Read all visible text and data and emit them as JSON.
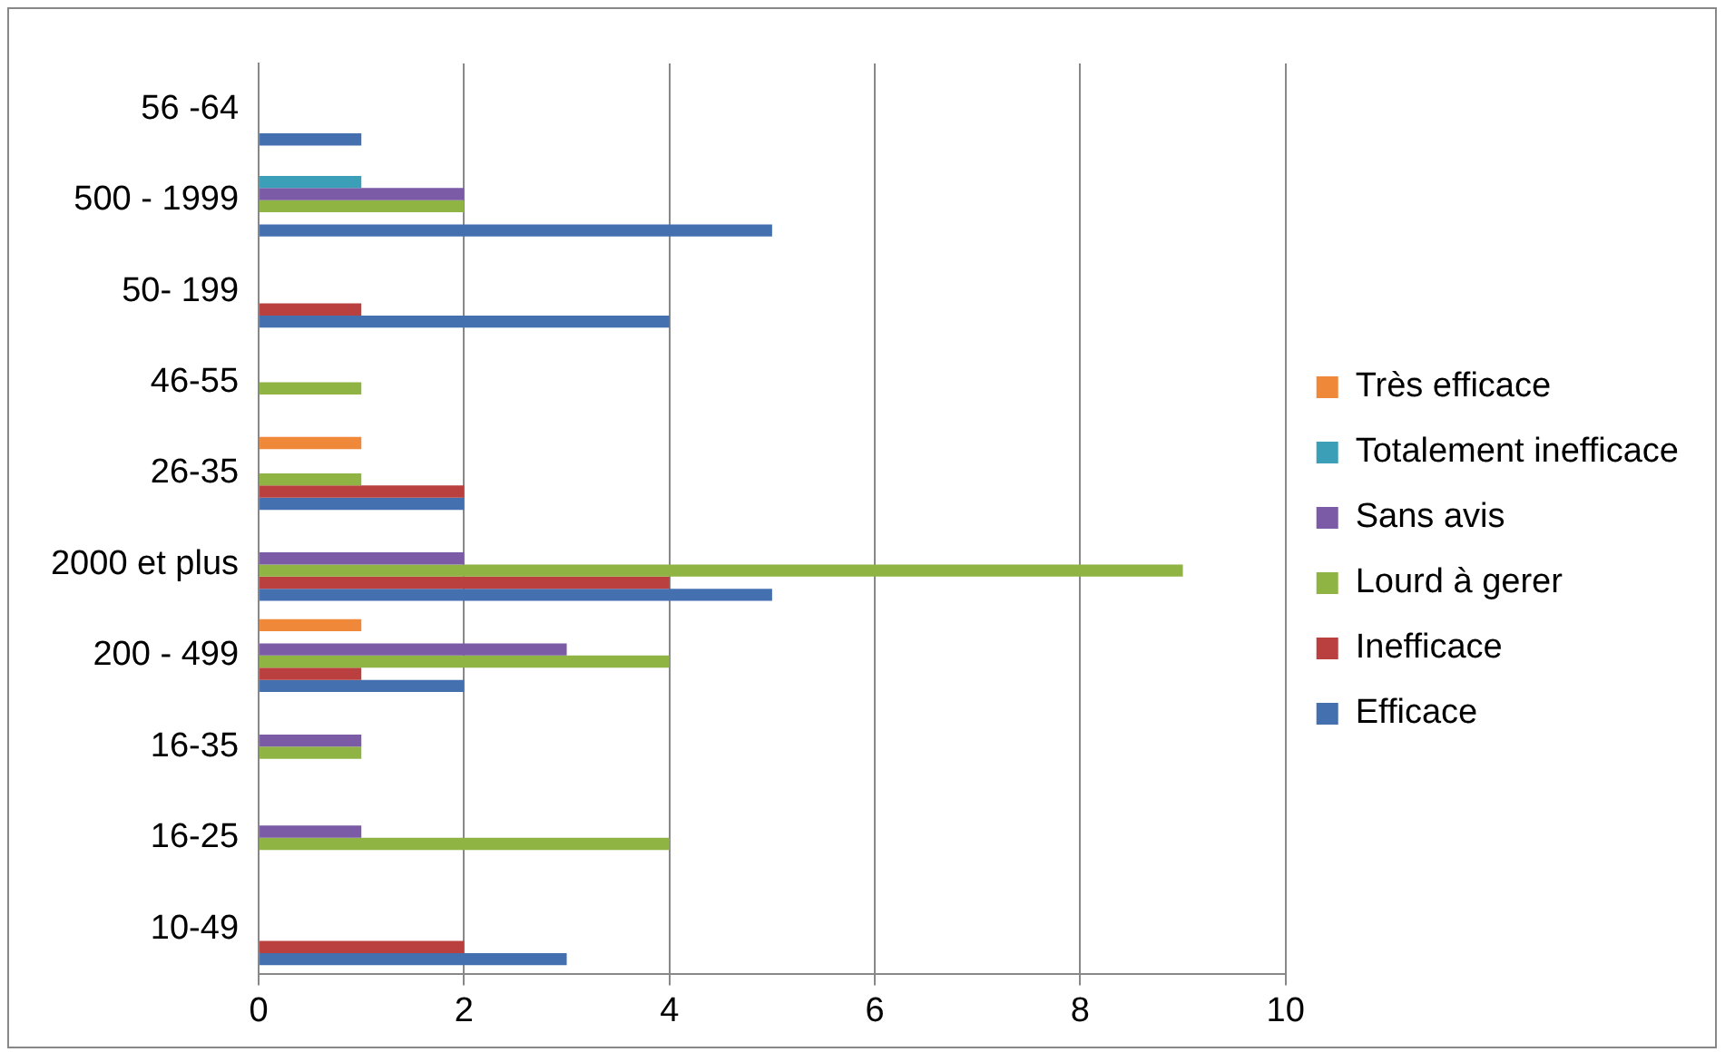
{
  "chart_data": {
    "type": "bar",
    "orientation": "horizontal",
    "categories": [
      "56 -64",
      "500 - 1999",
      "50- 199",
      "46-55",
      "26-35",
      "2000 et plus",
      "200 - 499",
      "16-35",
      "16-25",
      "10-49"
    ],
    "series": [
      {
        "name": "Très efficace",
        "color": "#f0883a",
        "values": [
          null,
          null,
          null,
          null,
          1,
          null,
          1,
          null,
          null,
          null
        ]
      },
      {
        "name": "Totalement inefficace",
        "color": "#3c9fb8",
        "values": [
          null,
          1,
          null,
          null,
          null,
          null,
          null,
          null,
          null,
          null
        ]
      },
      {
        "name": "Sans avis",
        "color": "#7b5ba6",
        "values": [
          null,
          2,
          null,
          null,
          null,
          2,
          3,
          1,
          1,
          null
        ]
      },
      {
        "name": "Lourd à gerer",
        "color": "#8fb443",
        "values": [
          null,
          2,
          null,
          1,
          1,
          9,
          4,
          1,
          4,
          null
        ]
      },
      {
        "name": "Inefficace",
        "color": "#b9403e",
        "values": [
          null,
          null,
          1,
          null,
          2,
          4,
          1,
          null,
          null,
          2
        ]
      },
      {
        "name": "Efficace",
        "color": "#4470b0",
        "values": [
          1,
          5,
          4,
          null,
          2,
          5,
          2,
          null,
          null,
          3
        ]
      }
    ],
    "xlim": [
      0,
      10
    ],
    "xticks": [
      0,
      2,
      4,
      6,
      8,
      10
    ],
    "grid": "x",
    "legend": "right"
  }
}
